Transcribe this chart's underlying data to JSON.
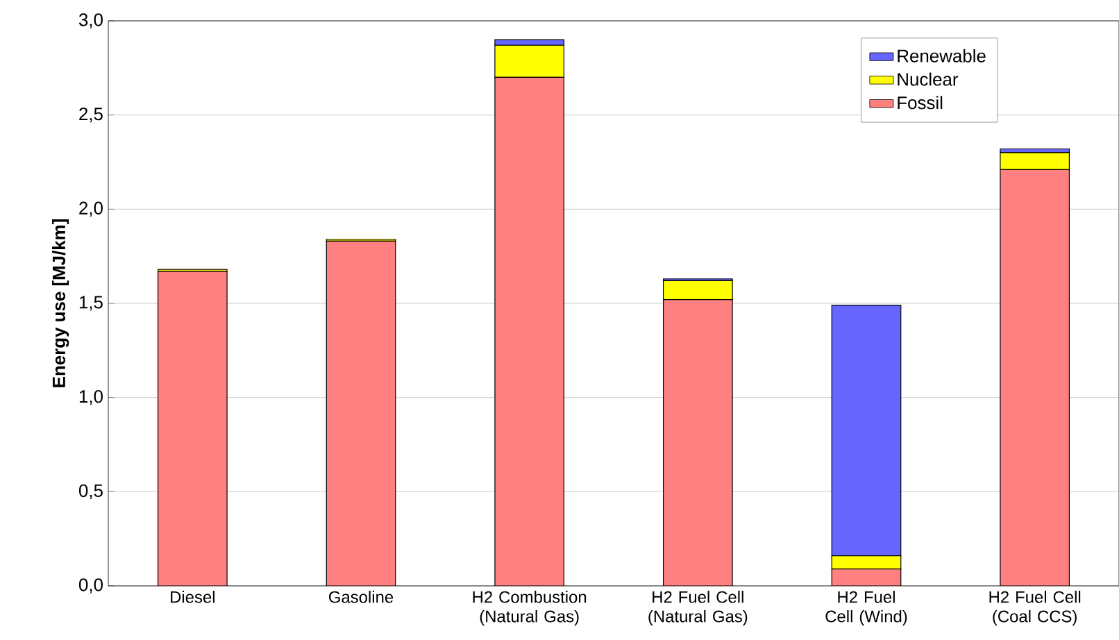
{
  "chart_data": {
    "type": "bar",
    "stacked": true,
    "ylabel": "Energy use [MJ/km]",
    "categories": [
      "Diesel",
      "Gasoline",
      "H2 Combustion (Natural Gas)",
      "H2 Fuel Cell (Natural Gas)",
      "H2 Fuel Cell (Wind)",
      "H2 Fuel Cell (Coal CCS)"
    ],
    "series": [
      {
        "name": "Fossil",
        "color": "#ff8080",
        "values": [
          1.67,
          1.83,
          2.7,
          1.52,
          0.09,
          2.21
        ]
      },
      {
        "name": "Nuclear",
        "color": "#ffff00",
        "values": [
          0.01,
          0.01,
          0.17,
          0.1,
          0.07,
          0.09
        ]
      },
      {
        "name": "Renewable",
        "color": "#6666ff",
        "values": [
          null,
          null,
          0.03,
          0.01,
          1.33,
          0.02
        ]
      }
    ],
    "ylim": [
      0,
      3
    ],
    "yticks": [
      {
        "value": 0,
        "label": "0,0"
      },
      {
        "value": 0.5,
        "label": "0,5"
      },
      {
        "value": 1,
        "label": "1,0"
      },
      {
        "value": 1.5,
        "label": "1,5"
      },
      {
        "value": 2,
        "label": "2,0"
      },
      {
        "value": 2.5,
        "label": "2,5"
      },
      {
        "value": 3,
        "label": "3,0"
      }
    ],
    "grid": "y",
    "legend": "top right"
  }
}
